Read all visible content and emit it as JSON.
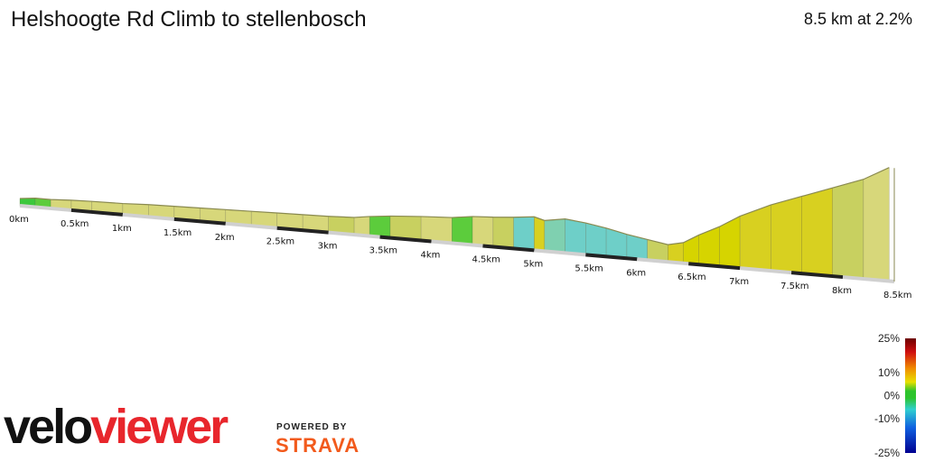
{
  "header": {
    "title": "Helshoogte Rd Climb to stellenbosch",
    "summary": "8.5 km at 2.2%"
  },
  "branding": {
    "logo_part1": "velo",
    "logo_part2": "viewer",
    "powered_by": "POWERED BY",
    "strava": "STRAVA",
    "logo_color": "#e8262c",
    "strava_color": "#f25a1c"
  },
  "legend": {
    "labels": [
      "25%",
      "10%",
      "0%",
      "-10%",
      "-25%"
    ],
    "values": [
      25,
      10,
      0,
      -10,
      -25
    ]
  },
  "chart_data": {
    "type": "area",
    "xlabel": "",
    "ylabel": "",
    "x_ticks": [
      "0km",
      "0.5km",
      "1km",
      "1.5km",
      "2km",
      "2.5km",
      "3km",
      "3.5km",
      "4km",
      "4.5km",
      "5km",
      "5.5km",
      "6km",
      "6.5km",
      "7km",
      "7.5km",
      "8km",
      "8.5km"
    ],
    "x_tick_values": [
      0,
      0.5,
      1,
      1.5,
      2,
      2.5,
      3,
      3.5,
      4,
      4.5,
      5,
      5.5,
      6,
      6.5,
      7,
      7.5,
      8,
      8.5
    ],
    "xlim": [
      0,
      8.5
    ],
    "distance_km": [
      0,
      0.15,
      0.3,
      0.5,
      0.7,
      1.0,
      1.25,
      1.5,
      1.75,
      2.0,
      2.25,
      2.5,
      2.75,
      3.0,
      3.25,
      3.4,
      3.6,
      3.9,
      4.2,
      4.4,
      4.6,
      4.8,
      5.0,
      5.1,
      5.3,
      5.5,
      5.7,
      5.9,
      6.1,
      6.3,
      6.45,
      6.6,
      6.8,
      7.0,
      7.3,
      7.6,
      7.9,
      8.2,
      8.45
    ],
    "relative_elevation": [
      0,
      3,
      3,
      5,
      6,
      7,
      9,
      10,
      11,
      12,
      13,
      14,
      15,
      16,
      18,
      22,
      26,
      30,
      33,
      38,
      40,
      43,
      47,
      42,
      48,
      44,
      38,
      30,
      24,
      18,
      24,
      40,
      58,
      80,
      105,
      125,
      145,
      165,
      190
    ],
    "gradient_pct": [
      2,
      0,
      2,
      1,
      1,
      1,
      1,
      1,
      1,
      1,
      1,
      1,
      1,
      1,
      3,
      1,
      2,
      3,
      1,
      2,
      1,
      3,
      -4,
      4,
      -2,
      -5,
      -6,
      -5,
      -5,
      3,
      4,
      5,
      5,
      5,
      4,
      4,
      4,
      3,
      1
    ]
  }
}
